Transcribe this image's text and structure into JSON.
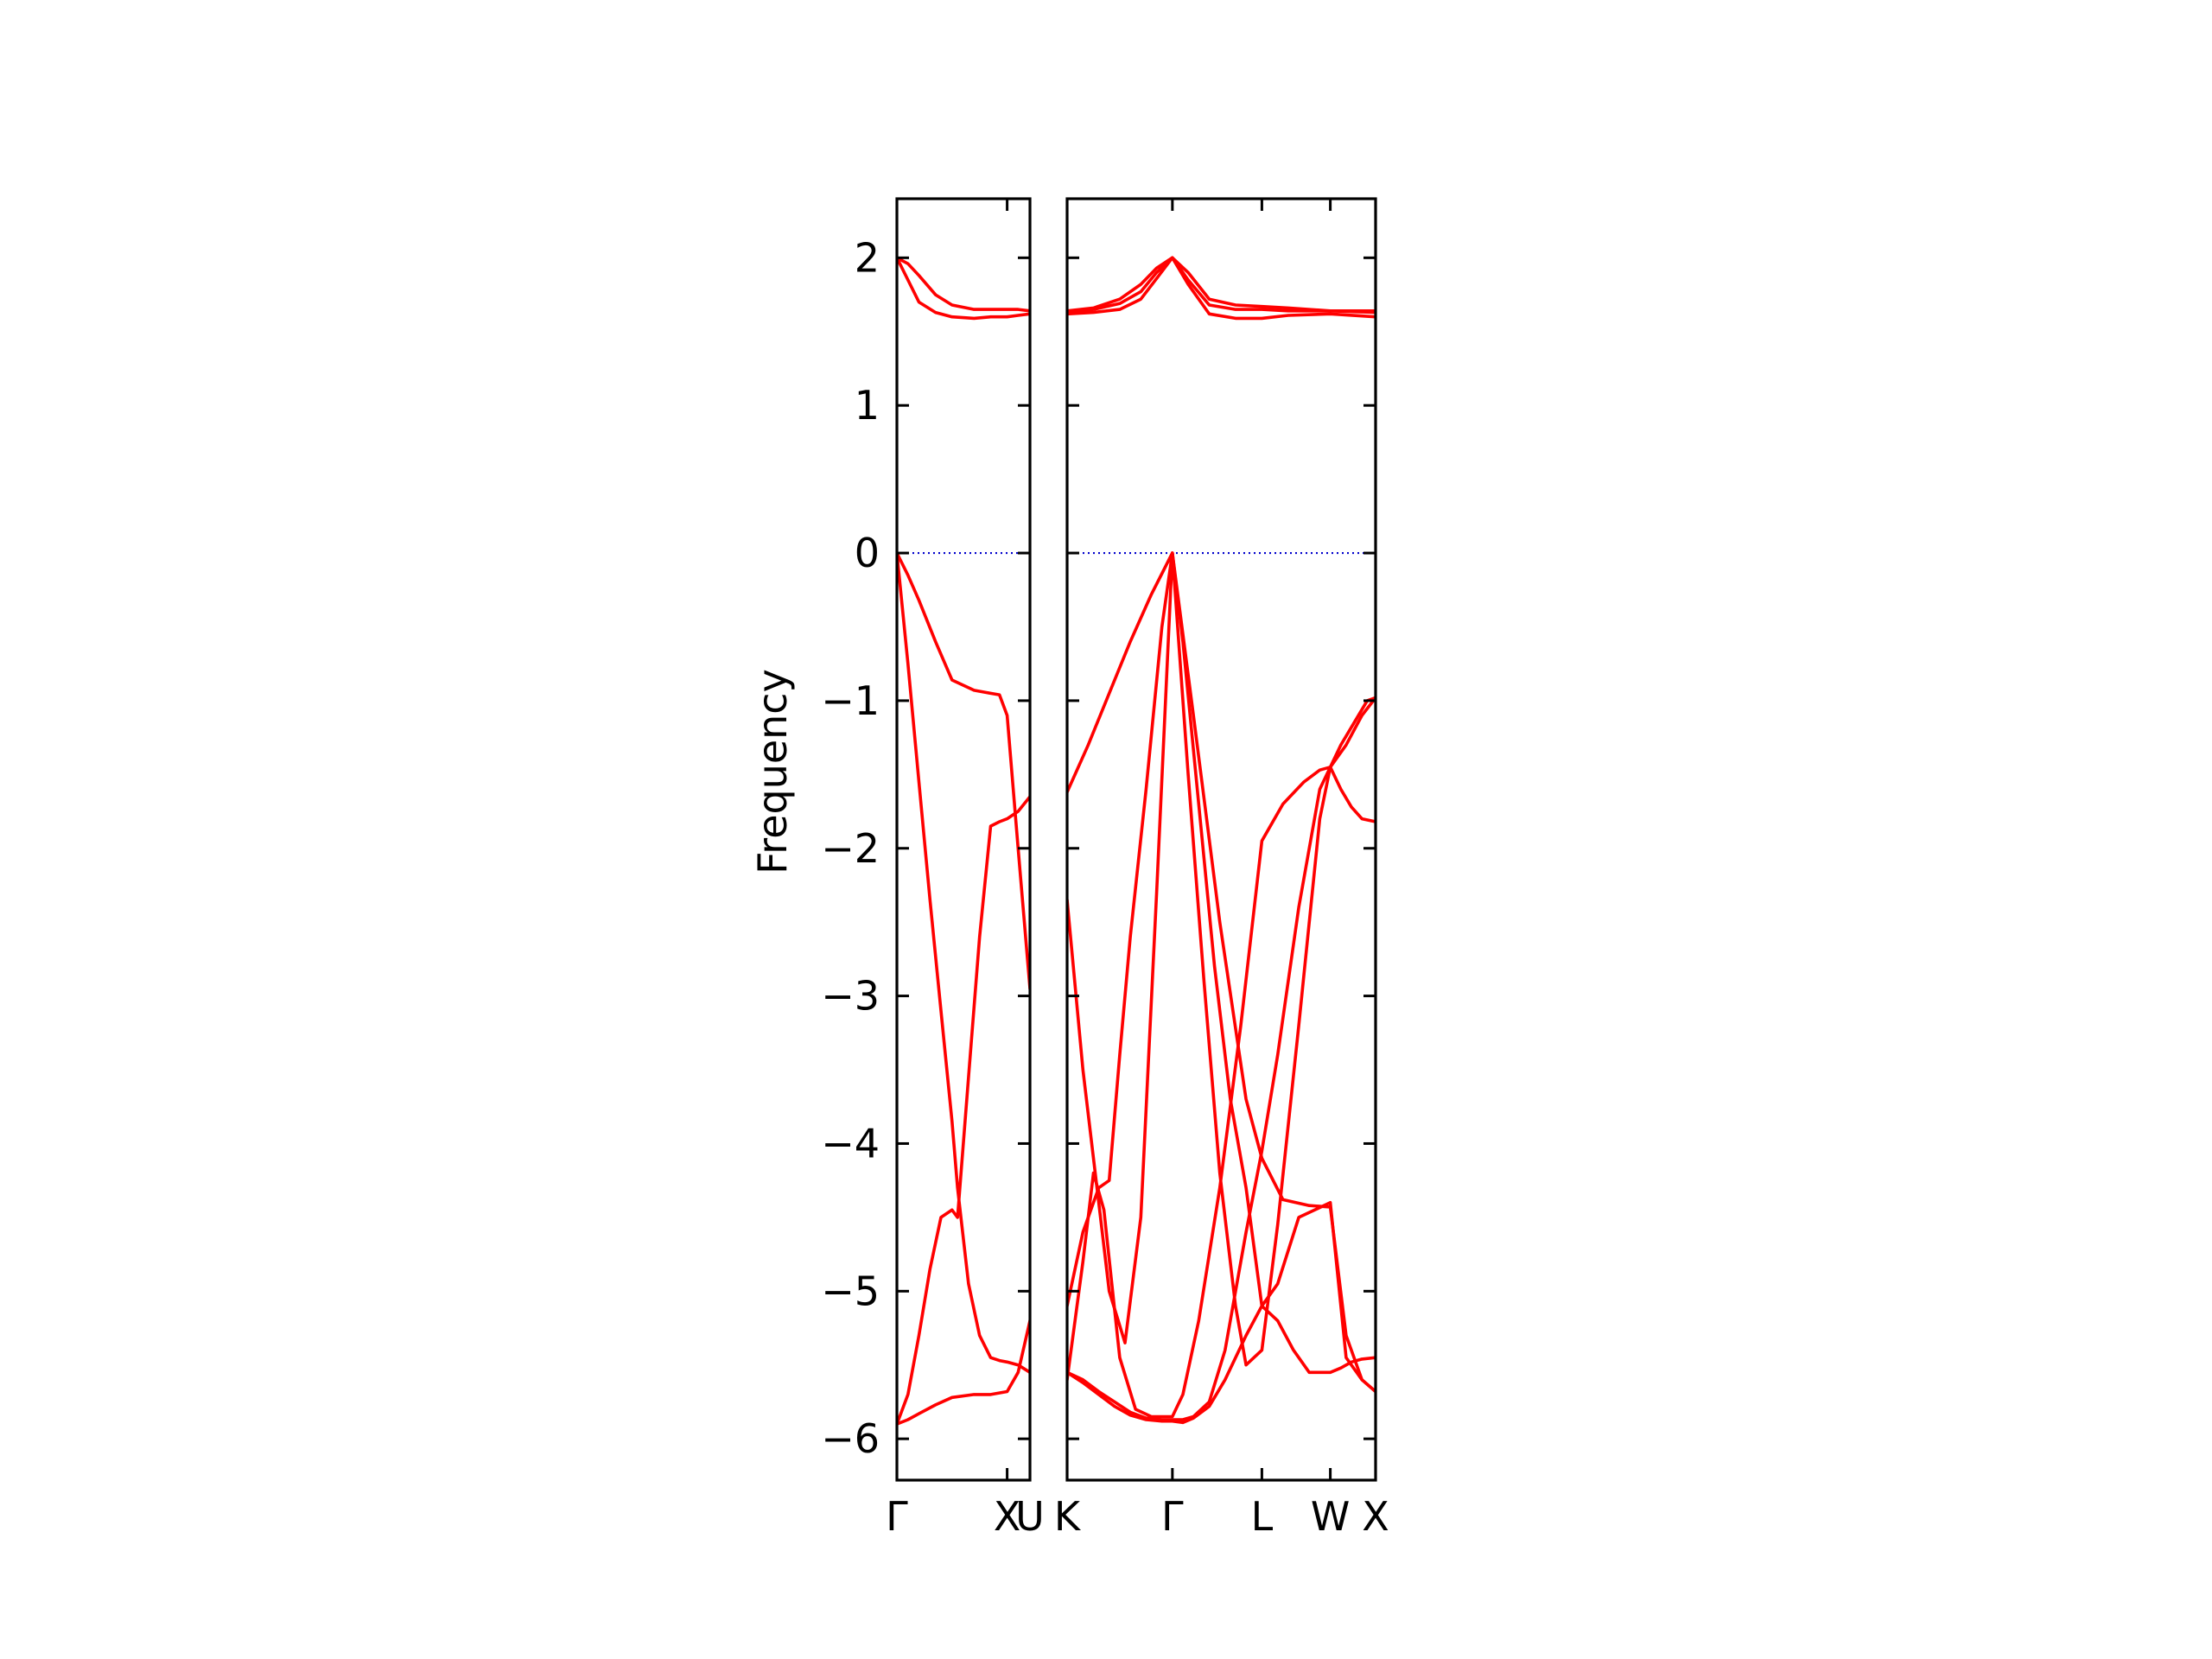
{
  "chart_data": {
    "type": "line",
    "title": "",
    "ylabel": "Frequency",
    "xlabel": "",
    "ylim": [
      -6.28,
      2.4
    ],
    "yticks": [
      2,
      1,
      0,
      -1,
      -2,
      -3,
      -4,
      -5,
      -6
    ],
    "ytick_labels": [
      "2",
      "1",
      "0",
      "−1",
      "−2",
      "−3",
      "−4",
      "−5",
      "−6"
    ],
    "grid": false,
    "line_color": "#ff0000",
    "zero_line_color": "#0000cc",
    "panels": [
      {
        "name": "Gamma-X-U",
        "xrange": [
          0,
          1.207
        ],
        "xticks": [
          0,
          1.0,
          1.207
        ],
        "xtick_labels": [
          "Γ",
          "X",
          "U"
        ],
        "bands": [
          {
            "x": [
              0,
              0.1,
              0.2,
              0.35,
              0.5,
              0.7,
              0.85,
              1.0,
              1.1,
              1.207
            ],
            "y": [
              2.0,
              1.96,
              1.88,
              1.75,
              1.68,
              1.65,
              1.65,
              1.65,
              1.65,
              1.64
            ]
          },
          {
            "x": [
              0,
              0.1,
              0.2,
              0.35,
              0.5,
              0.7,
              0.85,
              1.0,
              1.1,
              1.207
            ],
            "y": [
              2.0,
              1.85,
              1.7,
              1.63,
              1.6,
              1.59,
              1.6,
              1.6,
              1.61,
              1.62
            ]
          },
          {
            "x": [
              0,
              0.1,
              0.2,
              0.35,
              0.5,
              0.7,
              0.85,
              0.93,
              1.0,
              1.1,
              1.207
            ],
            "y": [
              0.0,
              -0.15,
              -0.32,
              -0.6,
              -0.86,
              -0.93,
              -0.95,
              -0.96,
              -1.1,
              -2.0,
              -2.95
            ]
          },
          {
            "x": [
              0,
              0.1,
              0.2,
              0.3,
              0.4,
              0.5,
              0.55,
              0.65,
              0.75,
              0.85,
              0.93,
              1.0,
              1.1,
              1.207
            ],
            "y": [
              0.0,
              -0.75,
              -1.55,
              -2.35,
              -3.1,
              -3.85,
              -4.3,
              -4.95,
              -5.3,
              -5.45,
              -5.47,
              -5.48,
              -5.5,
              -5.55
            ]
          },
          {
            "x": [
              0,
              0.1,
              0.2,
              0.3,
              0.4,
              0.5,
              0.55,
              0.65,
              0.75,
              0.85,
              0.93,
              1.0,
              1.1,
              1.207
            ],
            "y": [
              -5.9,
              -5.7,
              -5.3,
              -4.85,
              -4.5,
              -4.45,
              -4.5,
              -3.55,
              -2.6,
              -1.85,
              -1.82,
              -1.8,
              -1.75,
              -1.65
            ]
          },
          {
            "x": [
              0,
              0.1,
              0.2,
              0.35,
              0.5,
              0.7,
              0.85,
              1.0,
              1.1,
              1.207
            ],
            "y": [
              -5.9,
              -5.87,
              -5.83,
              -5.77,
              -5.72,
              -5.7,
              -5.7,
              -5.68,
              -5.55,
              -5.2
            ]
          }
        ]
      },
      {
        "name": "K-Gamma-L-W-X",
        "xrange": [
          0,
          2.93
        ],
        "xticks": [
          0,
          1.0,
          1.85,
          2.5,
          2.93
        ],
        "xtick_labels": [
          "K",
          "Γ",
          "L",
          "W",
          "X"
        ],
        "bands": [
          {
            "x": [
              0,
              0.25,
              0.5,
              0.7,
              0.85,
              1.0,
              1.15,
              1.35,
              1.6,
              1.85,
              2.1,
              2.5,
              2.93
            ],
            "y": [
              1.64,
              1.66,
              1.72,
              1.82,
              1.93,
              2.0,
              1.9,
              1.72,
              1.68,
              1.67,
              1.66,
              1.64,
              1.64
            ]
          },
          {
            "x": [
              0,
              0.25,
              0.5,
              0.7,
              0.85,
              1.0,
              1.15,
              1.35,
              1.6,
              1.85,
              2.1,
              2.5,
              2.93
            ],
            "y": [
              1.63,
              1.65,
              1.69,
              1.77,
              1.9,
              2.0,
              1.85,
              1.68,
              1.65,
              1.65,
              1.64,
              1.64,
              1.63
            ]
          },
          {
            "x": [
              0,
              0.25,
              0.5,
              0.7,
              0.85,
              1.0,
              1.15,
              1.35,
              1.6,
              1.85,
              2.1,
              2.5,
              2.93
            ],
            "y": [
              1.62,
              1.63,
              1.65,
              1.72,
              1.86,
              2.0,
              1.82,
              1.62,
              1.59,
              1.59,
              1.61,
              1.62,
              1.6
            ]
          },
          {
            "x": [
              0,
              0.2,
              0.4,
              0.6,
              0.8,
              1.0,
              1.2,
              1.45,
              1.7,
              1.85,
              2.05,
              2.3,
              2.5,
              2.65,
              2.8,
              2.93
            ],
            "y": [
              -1.62,
              -1.3,
              -0.95,
              -0.6,
              -0.28,
              0.0,
              -1.1,
              -2.5,
              -3.7,
              -4.1,
              -4.38,
              -4.42,
              -4.43,
              -5.3,
              -5.6,
              -5.68
            ]
          },
          {
            "x": [
              0,
              0.15,
              0.3,
              0.4,
              0.55,
              0.7,
              0.85,
              1.0,
              1.15,
              1.3,
              1.45,
              1.6,
              1.7,
              1.85,
              2.0,
              2.2,
              2.4,
              2.5,
              2.6,
              2.75,
              2.85,
              2.93
            ],
            "y": [
              -2.35,
              -3.5,
              -4.4,
              -5.0,
              -5.35,
              -4.5,
              -2.3,
              0.0,
              -1.5,
              -2.9,
              -4.2,
              -5.1,
              -5.5,
              -5.4,
              -4.55,
              -3.2,
              -1.8,
              -1.45,
              -1.3,
              -1.12,
              -1.0,
              -0.98
            ]
          },
          {
            "x": [
              0,
              0.15,
              0.3,
              0.4,
              0.5,
              0.6,
              0.75,
              0.9,
              1.0,
              1.1,
              1.25,
              1.4,
              1.55,
              1.7,
              1.85,
              2.0,
              2.15,
              2.3,
              2.5,
              2.6,
              2.7,
              2.8,
              2.93
            ],
            "y": [
              -5.1,
              -4.6,
              -4.3,
              -4.25,
              -3.4,
              -2.6,
              -1.6,
              -0.5,
              0.0,
              -0.6,
              -1.7,
              -2.8,
              -3.7,
              -4.3,
              -5.1,
              -5.2,
              -5.4,
              -5.55,
              -5.55,
              -5.52,
              -5.48,
              -5.46,
              -5.45
            ]
          },
          {
            "x": [
              0,
              0.15,
              0.25,
              0.35,
              0.5,
              0.65,
              0.8,
              0.9,
              1.0,
              1.1,
              1.25,
              1.45,
              1.65,
              1.85,
              2.05,
              2.25,
              2.4,
              2.5,
              2.6,
              2.7,
              2.8,
              2.93
            ],
            "y": [
              -5.6,
              -4.8,
              -4.2,
              -4.45,
              -5.45,
              -5.8,
              -5.85,
              -5.85,
              -5.85,
              -5.7,
              -5.2,
              -4.3,
              -3.2,
              -1.95,
              -1.7,
              -1.55,
              -1.47,
              -1.45,
              -1.6,
              -1.72,
              -1.8,
              -1.82
            ]
          },
          {
            "x": [
              0,
              0.15,
              0.3,
              0.45,
              0.6,
              0.75,
              0.9,
              1.0,
              1.1,
              1.2,
              1.35,
              1.5,
              1.7,
              1.85,
              2.0,
              2.2,
              2.4,
              2.5,
              2.65,
              2.8,
              2.93
            ],
            "y": [
              -5.55,
              -5.6,
              -5.68,
              -5.75,
              -5.82,
              -5.86,
              -5.87,
              -5.87,
              -5.87,
              -5.85,
              -5.75,
              -5.4,
              -4.6,
              -4.05,
              -3.4,
              -2.4,
              -1.6,
              -1.45,
              -1.3,
              -1.1,
              -0.98
            ]
          },
          {
            "x": [
              0,
              0.15,
              0.3,
              0.45,
              0.6,
              0.75,
              0.9,
              1.0,
              1.1,
              1.2,
              1.35,
              1.5,
              1.7,
              1.85,
              2.0,
              2.2,
              2.5,
              2.65,
              2.8,
              2.93
            ],
            "y": [
              -5.55,
              -5.62,
              -5.7,
              -5.78,
              -5.84,
              -5.87,
              -5.88,
              -5.88,
              -5.89,
              -5.86,
              -5.78,
              -5.6,
              -5.3,
              -5.1,
              -4.95,
              -4.5,
              -4.4,
              -5.45,
              -5.6,
              -5.68
            ]
          }
        ]
      }
    ]
  }
}
